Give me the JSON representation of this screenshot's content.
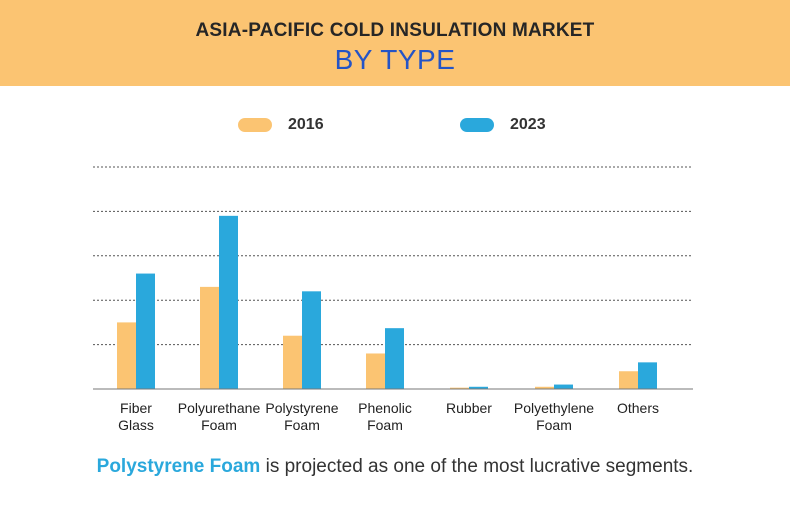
{
  "header": {
    "title": "ASIA-PACIFIC COLD INSULATION MARKET",
    "subtitle": "BY TYPE"
  },
  "colors": {
    "header_bg": "#fbc472",
    "series_2016": "#fbc472",
    "series_2023": "#2aa8dc",
    "subtitle": "#2454c6",
    "highlight": "#2aa8dc"
  },
  "chart_data": {
    "type": "bar",
    "categories": [
      [
        "Fiber",
        "Glass"
      ],
      [
        "Polyurethane",
        "Foam"
      ],
      [
        "Polystyrene",
        "Foam"
      ],
      [
        "Phenolic",
        "Foam"
      ],
      [
        "Rubber"
      ],
      [
        "Polyethylene",
        "Foam"
      ],
      [
        "Others"
      ]
    ],
    "series": [
      {
        "name": "2016",
        "values": [
          1.5,
          2.3,
          1.2,
          0.8,
          0.03,
          0.05,
          0.4
        ]
      },
      {
        "name": "2023",
        "values": [
          2.6,
          3.9,
          2.2,
          1.37,
          0.05,
          0.1,
          0.6
        ]
      }
    ],
    "ylim": [
      0,
      5
    ],
    "grid": true,
    "legend_position": "top"
  },
  "footer": {
    "highlight": "Polystyrene Foam",
    "rest": " is projected as one of the most lucrative segments."
  }
}
